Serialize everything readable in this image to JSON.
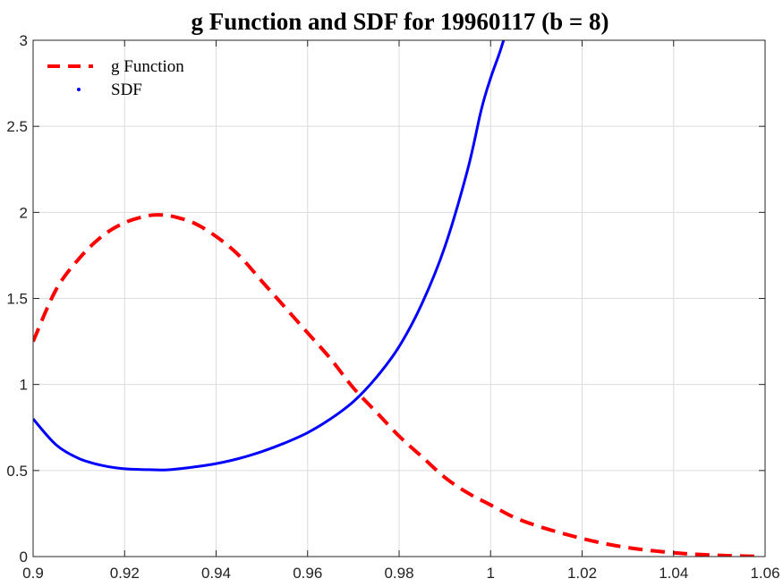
{
  "chart_data": {
    "type": "line",
    "title": "g Function and SDF for 19960117 (b = 8)",
    "xlabel": "",
    "ylabel": "",
    "xlim": [
      0.9,
      1.06
    ],
    "ylim": [
      0,
      3
    ],
    "grid": true,
    "legend_position": "top-left",
    "x_ticks": [
      "0.9",
      "0.92",
      "0.94",
      "0.96",
      "0.98",
      "1",
      "1.02",
      "1.04",
      "1.06"
    ],
    "y_ticks": [
      "0",
      "0.5",
      "1",
      "1.5",
      "2",
      "2.5",
      "3"
    ],
    "series": [
      {
        "name": "g Function",
        "style": "dashed",
        "color": "#ff0000",
        "x": [
          0.9,
          0.905,
          0.91,
          0.915,
          0.92,
          0.925,
          0.928,
          0.93,
          0.935,
          0.94,
          0.945,
          0.95,
          0.955,
          0.96,
          0.965,
          0.97,
          0.975,
          0.98,
          0.985,
          0.99,
          0.995,
          1.0,
          1.005,
          1.01,
          1.015,
          1.02,
          1.025,
          1.03,
          1.035,
          1.04,
          1.045,
          1.05,
          1.055,
          1.058
        ],
        "y": [
          1.25,
          1.55,
          1.73,
          1.86,
          1.94,
          1.98,
          1.985,
          1.98,
          1.94,
          1.86,
          1.75,
          1.6,
          1.45,
          1.3,
          1.15,
          0.98,
          0.84,
          0.7,
          0.58,
          0.46,
          0.37,
          0.3,
          0.23,
          0.18,
          0.14,
          0.105,
          0.075,
          0.052,
          0.035,
          0.022,
          0.013,
          0.007,
          0.003,
          0.001
        ]
      },
      {
        "name": "SDF",
        "style": "solid",
        "color": "#0000ff",
        "x": [
          0.9,
          0.905,
          0.91,
          0.915,
          0.92,
          0.925,
          0.928,
          0.93,
          0.935,
          0.94,
          0.945,
          0.95,
          0.955,
          0.96,
          0.965,
          0.97,
          0.975,
          0.98,
          0.985,
          0.99,
          0.995,
          0.998,
          1.0,
          1.002,
          1.004
        ],
        "y": [
          0.8,
          0.65,
          0.57,
          0.53,
          0.51,
          0.505,
          0.503,
          0.505,
          0.52,
          0.54,
          0.57,
          0.61,
          0.66,
          0.72,
          0.8,
          0.9,
          1.04,
          1.22,
          1.47,
          1.8,
          2.25,
          2.6,
          2.78,
          2.93,
          3.1
        ]
      }
    ]
  }
}
